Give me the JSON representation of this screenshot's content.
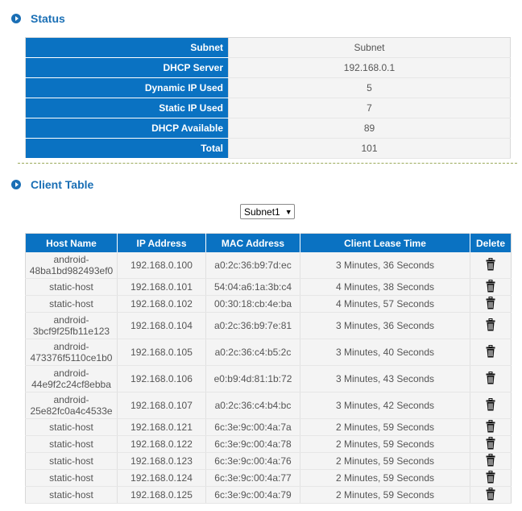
{
  "status": {
    "title": "Status",
    "rows": [
      {
        "label": "Subnet",
        "value": "Subnet"
      },
      {
        "label": "DHCP Server",
        "value": "192.168.0.1"
      },
      {
        "label": "Dynamic IP Used",
        "value": "5"
      },
      {
        "label": "Static IP Used",
        "value": "7"
      },
      {
        "label": "DHCP Available",
        "value": "89"
      },
      {
        "label": "Total",
        "value": "101"
      }
    ]
  },
  "client_table": {
    "title": "Client Table",
    "subnet_select": {
      "selected": "Subnet1"
    },
    "columns": [
      "Host Name",
      "IP Address",
      "MAC Address",
      "Client Lease Time",
      "Delete"
    ],
    "rows": [
      {
        "host": "android-48ba1bd982493ef0",
        "ip": "192.168.0.100",
        "mac": "a0:2c:36:b9:7d:ec",
        "lease": "3 Minutes, 36 Seconds"
      },
      {
        "host": "static-host",
        "ip": "192.168.0.101",
        "mac": "54:04:a6:1a:3b:c4",
        "lease": "4 Minutes, 38 Seconds"
      },
      {
        "host": "static-host",
        "ip": "192.168.0.102",
        "mac": "00:30:18:cb:4e:ba",
        "lease": "4 Minutes, 57 Seconds"
      },
      {
        "host": "android-3bcf9f25fb11e123",
        "ip": "192.168.0.104",
        "mac": "a0:2c:36:b9:7e:81",
        "lease": "3 Minutes, 36 Seconds"
      },
      {
        "host": "android-473376f5110ce1b0",
        "ip": "192.168.0.105",
        "mac": "a0:2c:36:c4:b5:2c",
        "lease": "3 Minutes, 40 Seconds"
      },
      {
        "host": "android-44e9f2c24cf8ebba",
        "ip": "192.168.0.106",
        "mac": "e0:b9:4d:81:1b:72",
        "lease": "3 Minutes, 43 Seconds"
      },
      {
        "host": "android-25e82fc0a4c4533e",
        "ip": "192.168.0.107",
        "mac": "a0:2c:36:c4:b4:bc",
        "lease": "3 Minutes, 42 Seconds"
      },
      {
        "host": "static-host",
        "ip": "192.168.0.121",
        "mac": "6c:3e:9c:00:4a:7a",
        "lease": "2 Minutes, 59 Seconds"
      },
      {
        "host": "static-host",
        "ip": "192.168.0.122",
        "mac": "6c:3e:9c:00:4a:78",
        "lease": "2 Minutes, 59 Seconds"
      },
      {
        "host": "static-host",
        "ip": "192.168.0.123",
        "mac": "6c:3e:9c:00:4a:76",
        "lease": "2 Minutes, 59 Seconds"
      },
      {
        "host": "static-host",
        "ip": "192.168.0.124",
        "mac": "6c:3e:9c:00:4a:77",
        "lease": "2 Minutes, 59 Seconds"
      },
      {
        "host": "static-host",
        "ip": "192.168.0.125",
        "mac": "6c:3e:9c:00:4a:79",
        "lease": "2 Minutes, 59 Seconds"
      }
    ]
  },
  "icons": {
    "section": "play-circle-icon",
    "delete": "trash-icon",
    "dropdown": "triangle-down-icon"
  },
  "colors": {
    "header_blue": "#0a72c2",
    "title_blue": "#1a6fb5",
    "cell_bg": "#f4f4f4"
  }
}
